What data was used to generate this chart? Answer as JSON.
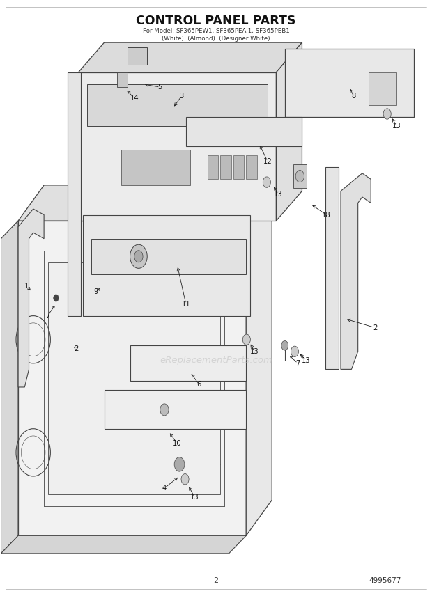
{
  "title": "CONTROL PANEL PARTS",
  "subtitle_line1": "For Model: SF365PEW1, SF365PEAl1, SF365PEB1",
  "subtitle_line2": "(White)  (Almond)  (Designer White)",
  "page_number": "2",
  "part_number": "4995677",
  "background_color": "#ffffff",
  "line_color": "#444444",
  "watermark": "eReplacementParts.com"
}
